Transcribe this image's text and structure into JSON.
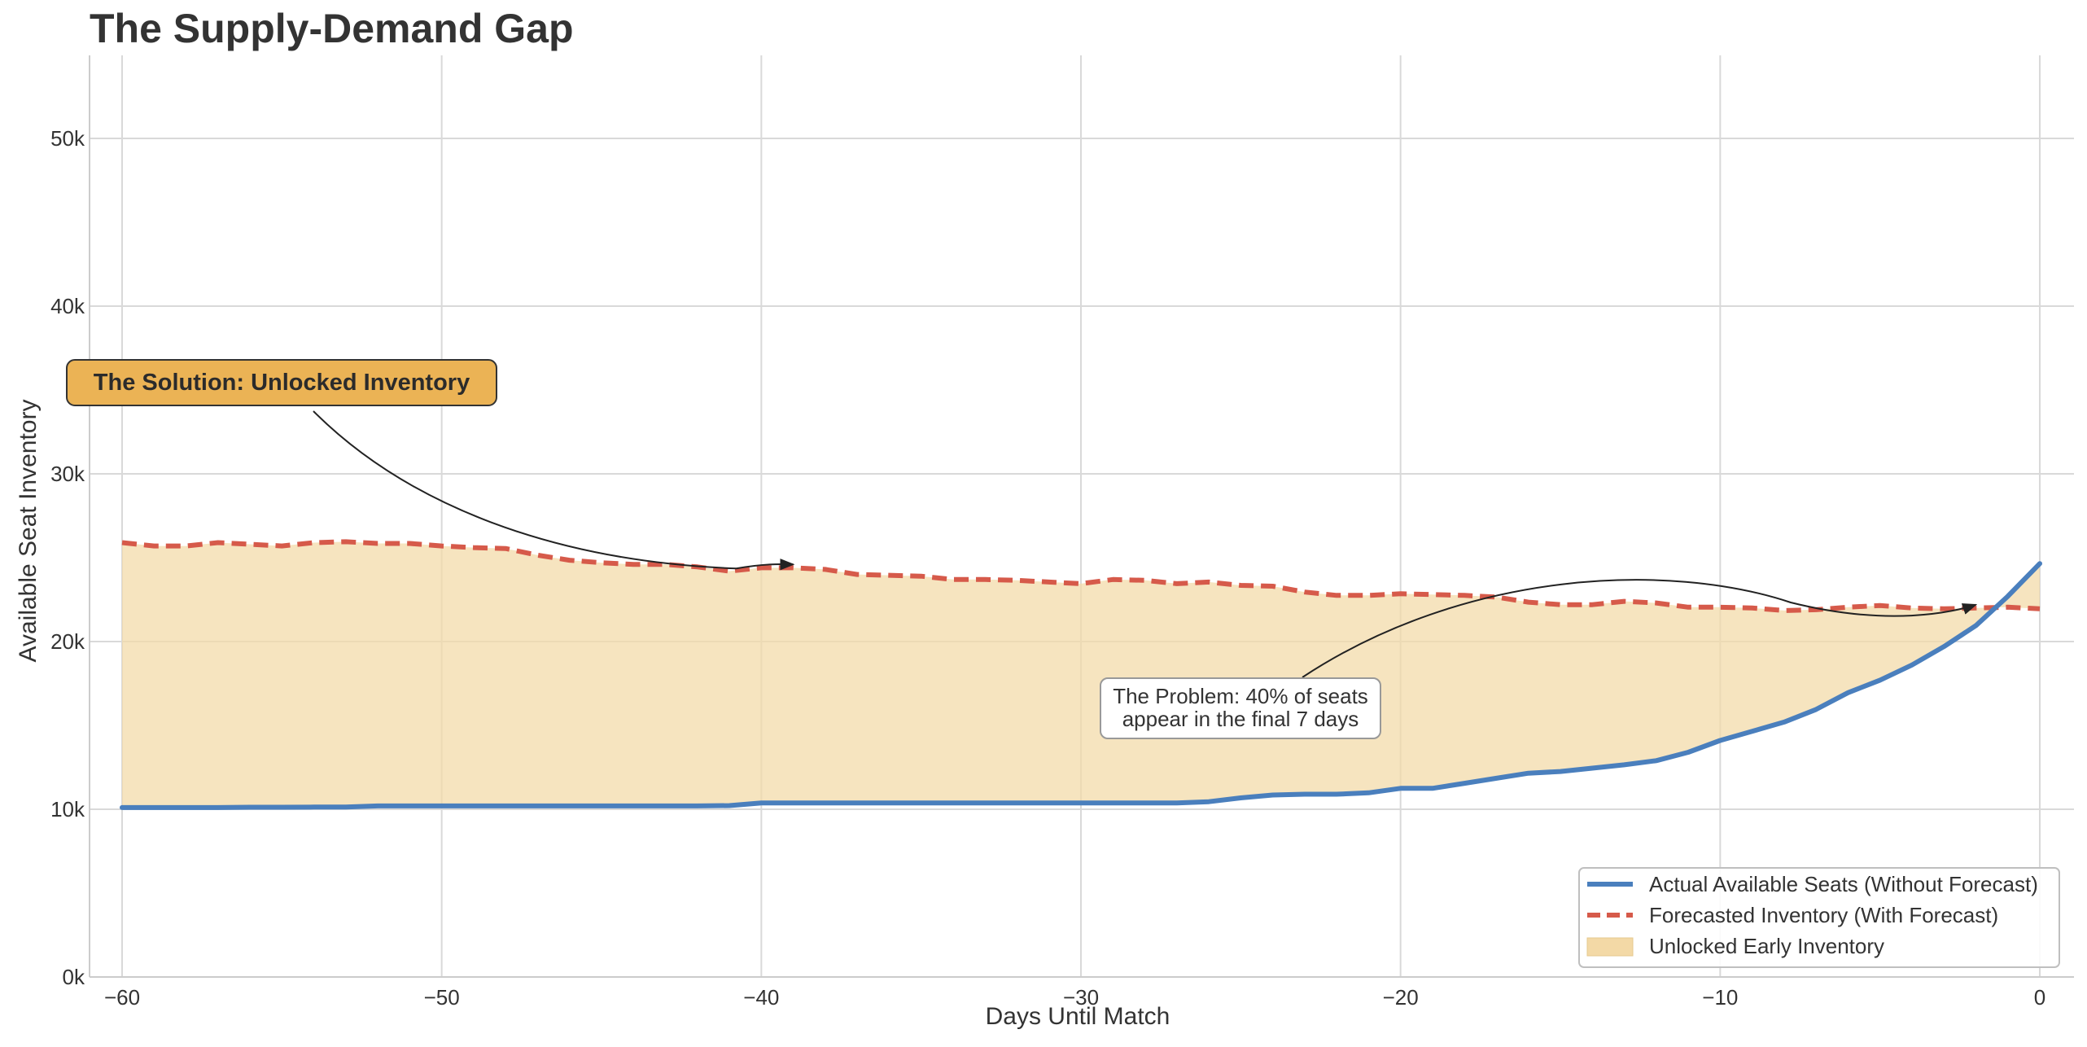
{
  "chart_data": {
    "type": "line",
    "title": "The Supply-Demand Gap",
    "xlabel": "Days Until Match",
    "ylabel": "Available Seat Inventory",
    "xlim": [
      -61,
      1
    ],
    "ylim": [
      0,
      55000
    ],
    "x_ticks": [
      -60,
      -50,
      -40,
      -30,
      -20,
      -10,
      0
    ],
    "x_tick_labels": [
      "−60",
      "−50",
      "−40",
      "−30",
      "−20",
      "−10",
      "0"
    ],
    "y_ticks": [
      0,
      10000,
      20000,
      30000,
      40000,
      50000
    ],
    "y_tick_labels": [
      "0k",
      "10k",
      "20k",
      "30k",
      "40k",
      "50k"
    ],
    "grid": true,
    "legend_position": "bottom-right",
    "x": [
      -60,
      -59,
      -58,
      -57,
      -56,
      -55,
      -54,
      -53,
      -52,
      -51,
      -50,
      -49,
      -48,
      -47,
      -46,
      -45,
      -44,
      -43,
      -42,
      -41,
      -40,
      -39,
      -38,
      -37,
      -36,
      -35,
      -34,
      -33,
      -32,
      -31,
      -30,
      -29,
      -28,
      -27,
      -26,
      -25,
      -24,
      -23,
      -22,
      -21,
      -20,
      -19,
      -18,
      -17,
      -16,
      -15,
      -14,
      -13,
      -12,
      -11,
      -10,
      -9,
      -8,
      -7,
      -6,
      -5,
      -4,
      -3,
      -2,
      -1,
      0
    ],
    "series": [
      {
        "name": "Actual Available Seats (Without Forecast)",
        "style": "solid",
        "color": "#4a7fbd",
        "values": [
          10100,
          10100,
          10100,
          10100,
          10120,
          10120,
          10130,
          10130,
          10200,
          10200,
          10200,
          10200,
          10200,
          10200,
          10200,
          10200,
          10200,
          10200,
          10200,
          10220,
          10380,
          10380,
          10380,
          10380,
          10380,
          10380,
          10380,
          10380,
          10380,
          10380,
          10380,
          10380,
          10380,
          10380,
          10450,
          10680,
          10850,
          10900,
          10900,
          10980,
          11250,
          11250,
          11550,
          11850,
          12150,
          12250,
          12450,
          12650,
          12900,
          13400,
          14100,
          14650,
          15200,
          15950,
          16950,
          17700,
          18600,
          19700,
          20950,
          22700,
          24650
        ]
      },
      {
        "name": "Forecasted Inventory (With Forecast)",
        "style": "dashed",
        "color": "#d65a4a",
        "values": [
          25900,
          25700,
          25700,
          25900,
          25800,
          25700,
          25900,
          25950,
          25850,
          25850,
          25700,
          25600,
          25550,
          25150,
          24850,
          24700,
          24600,
          24600,
          24450,
          24200,
          24400,
          24400,
          24300,
          24000,
          23950,
          23900,
          23700,
          23700,
          23650,
          23550,
          23450,
          23700,
          23650,
          23450,
          23550,
          23350,
          23300,
          22950,
          22750,
          22750,
          22850,
          22800,
          22750,
          22650,
          22350,
          22200,
          22200,
          22400,
          22300,
          22050,
          22050,
          22000,
          21850,
          21900,
          22050,
          22150,
          22000,
          21950,
          22000,
          22050,
          21950
        ]
      }
    ],
    "fill": {
      "name": "Unlocked Early Inventory",
      "between": [
        "Actual Available Seats (Without Forecast)",
        "Forecasted Inventory (With Forecast)"
      ],
      "color": "#f3d9a6"
    },
    "annotations": [
      {
        "text": "The Solution: Unlocked Inventory",
        "arrow_target": [
          -39,
          24600
        ]
      },
      {
        "text": "The Problem: 40% of seats\nappear in the final 7 days",
        "arrow_target": [
          -2,
          22200
        ]
      }
    ]
  },
  "annotations": {
    "solution": "The Solution: Unlocked Inventory",
    "problem_line1": "The Problem: 40% of seats",
    "problem_line2": "appear in the final 7 days"
  },
  "colors": {
    "actual": "#4a7fbd",
    "forecast": "#d65a4a",
    "fill": "#f3d9a6",
    "solution_box": "#ebb355",
    "grid": "#d9d9d9"
  }
}
